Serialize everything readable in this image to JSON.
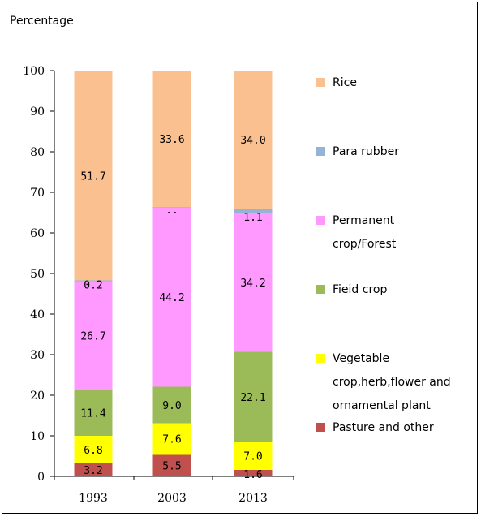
{
  "chart_data": {
    "type": "bar",
    "stacked": true,
    "ylabel": "Percentage",
    "ylim": [
      0,
      100
    ],
    "yticks": [
      0,
      10,
      20,
      30,
      40,
      50,
      60,
      70,
      80,
      90,
      100
    ],
    "categories": [
      "1993",
      "2003",
      "2013"
    ],
    "series": [
      {
        "name": "Pasture and other",
        "color": "#c0504d",
        "values": [
          3.2,
          5.5,
          1.6
        ],
        "labels": [
          "3.2",
          "5.5",
          "1.6"
        ]
      },
      {
        "name": "Vegetable crop,herb,flower and ornamental plant",
        "name_lines": [
          "Vegetable",
          "crop,herb,flower and",
          "ornamental plant"
        ],
        "color": "#ffff00",
        "values": [
          6.8,
          7.6,
          7.0
        ],
        "labels": [
          "6.8",
          "7.6",
          "7.0"
        ]
      },
      {
        "name": "Fieid crop",
        "color": "#9bbb59",
        "values": [
          11.4,
          9.0,
          22.1
        ],
        "labels": [
          "11.4",
          "9.0",
          "22.1"
        ]
      },
      {
        "name": "Permanent crop/Forest",
        "name_lines": [
          "Permanent",
          "crop/Forest"
        ],
        "color": "#ff99ff",
        "values": [
          26.7,
          44.2,
          34.2
        ],
        "labels": [
          "26.7",
          "44.2",
          "34.2"
        ]
      },
      {
        "name": "Para rubber",
        "color": "#95b3d7",
        "values": [
          0.2,
          0.1,
          1.1
        ],
        "labels": [
          "0.2",
          "..",
          "1.1"
        ]
      },
      {
        "name": "Rice",
        "color": "#fac090",
        "values": [
          51.7,
          33.6,
          34.0
        ],
        "labels": [
          "51.7",
          "33.6",
          "34.0"
        ]
      }
    ],
    "legend_order": [
      "Rice",
      "Para rubber",
      "Permanent crop/Forest",
      "Fieid crop",
      "Vegetable crop,herb,flower and ornamental plant",
      "Pasture and other"
    ],
    "legend_position": "right",
    "grid": false
  }
}
